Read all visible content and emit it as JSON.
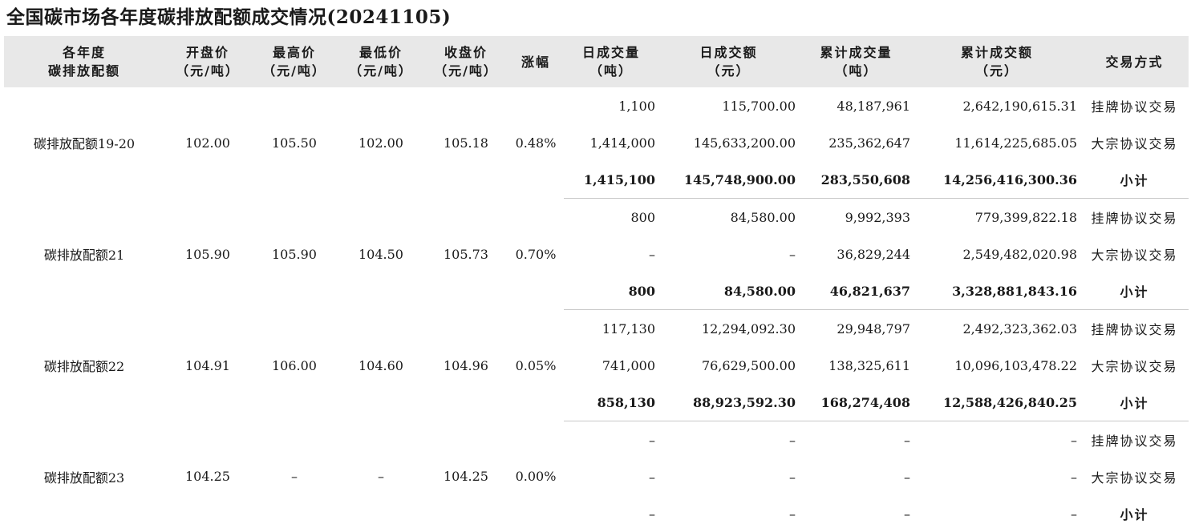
{
  "title": "全国碳市场各年度碳排放配额成交情况(20241105)",
  "headers": [
    [
      "各年度",
      "碳排放配额"
    ],
    [
      "开盘价",
      "（元/吨）"
    ],
    [
      "最高价",
      "（元/吨）"
    ],
    [
      "最低价",
      "（元/吨）"
    ],
    [
      "收盘价",
      "（元/吨）"
    ],
    [
      "涨幅",
      ""
    ],
    [
      "日成交量",
      "（吨）"
    ],
    [
      "日成交额",
      "（元）"
    ],
    [
      "累计成交量",
      "（吨）"
    ],
    [
      "累计成交额",
      "（元）"
    ],
    [
      "交易方式",
      ""
    ]
  ],
  "groups": [
    {
      "name": "碳排放配额19-20",
      "open": "102.00",
      "high": "105.50",
      "low": "102.00",
      "close": "105.18",
      "change": "0.48%",
      "rows": [
        {
          "vol": "1,100",
          "amt": "115,700.00",
          "cvol": "48,187,961",
          "camt": "2,642,190,615.31",
          "mode": "挂牌协议交易"
        },
        {
          "vol": "1,414,000",
          "amt": "145,633,200.00",
          "cvol": "235,362,647",
          "camt": "11,614,225,685.05",
          "mode": "大宗协议交易"
        },
        {
          "vol": "1,415,100",
          "amt": "145,748,900.00",
          "cvol": "283,550,608",
          "camt": "14,256,416,300.36",
          "mode": "小计"
        }
      ]
    },
    {
      "name": "碳排放配额21",
      "open": "105.90",
      "high": "105.90",
      "low": "104.50",
      "close": "105.73",
      "change": "0.70%",
      "rows": [
        {
          "vol": "800",
          "amt": "84,580.00",
          "cvol": "9,992,393",
          "camt": "779,399,822.18",
          "mode": "挂牌协议交易"
        },
        {
          "vol": "–",
          "amt": "–",
          "cvol": "36,829,244",
          "camt": "2,549,482,020.98",
          "mode": "大宗协议交易"
        },
        {
          "vol": "800",
          "amt": "84,580.00",
          "cvol": "46,821,637",
          "camt": "3,328,881,843.16",
          "mode": "小计"
        }
      ]
    },
    {
      "name": "碳排放配额22",
      "open": "104.91",
      "high": "106.00",
      "low": "104.60",
      "close": "104.96",
      "change": "0.05%",
      "rows": [
        {
          "vol": "117,130",
          "amt": "12,294,092.30",
          "cvol": "29,948,797",
          "camt": "2,492,323,362.03",
          "mode": "挂牌协议交易"
        },
        {
          "vol": "741,000",
          "amt": "76,629,500.00",
          "cvol": "138,325,611",
          "camt": "10,096,103,478.22",
          "mode": "大宗协议交易"
        },
        {
          "vol": "858,130",
          "amt": "88,923,592.30",
          "cvol": "168,274,408",
          "camt": "12,588,426,840.25",
          "mode": "小计"
        }
      ]
    },
    {
      "name": "碳排放配额23",
      "open": "104.25",
      "high": "–",
      "low": "–",
      "close": "104.25",
      "change": "0.00%",
      "rows": [
        {
          "vol": "–",
          "amt": "–",
          "cvol": "–",
          "camt": "–",
          "mode": "挂牌协议交易"
        },
        {
          "vol": "–",
          "amt": "–",
          "cvol": "–",
          "camt": "–",
          "mode": "大宗协议交易"
        },
        {
          "vol": "–",
          "amt": "–",
          "cvol": "–",
          "camt": "–",
          "mode": "小计"
        }
      ]
    }
  ]
}
